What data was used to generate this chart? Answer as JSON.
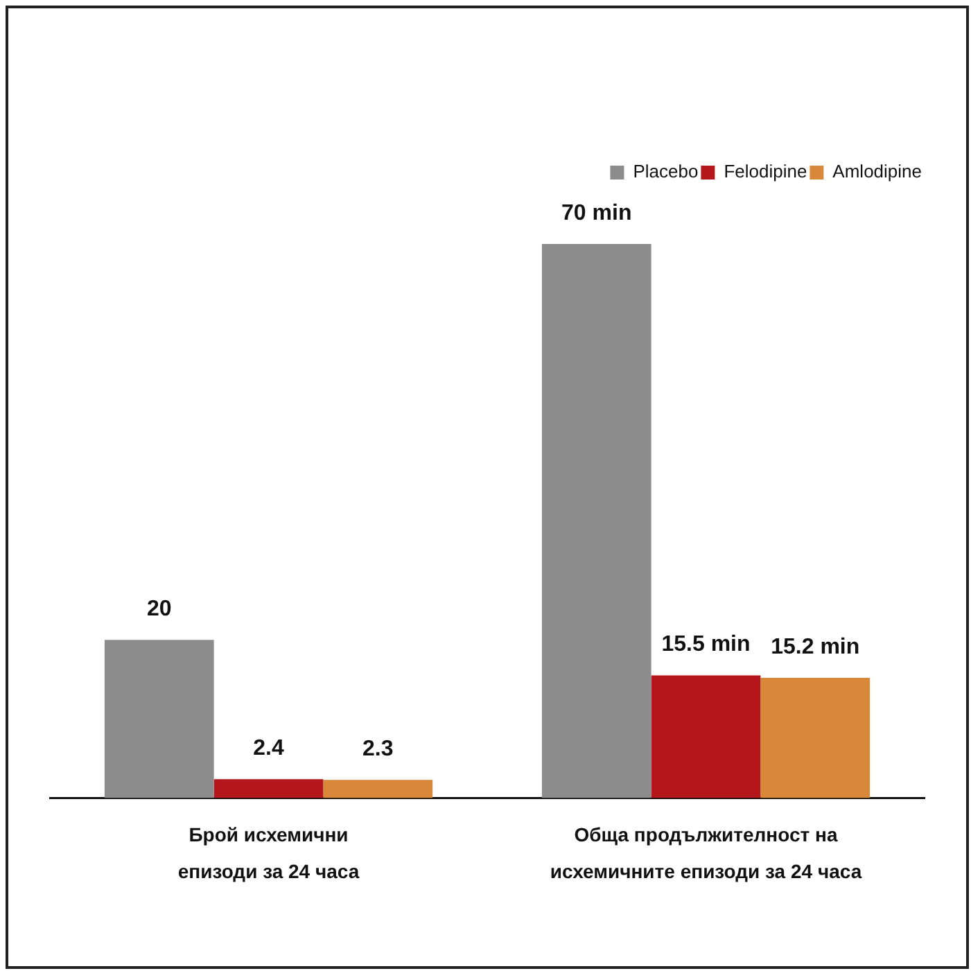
{
  "chart_data": {
    "type": "bar",
    "categories": [
      "Брой исхемични\nепизоди за 24 часа",
      "Обща продължителност на\nисхемичните епизоди за 24 часа"
    ],
    "series": [
      {
        "name": "Placebo",
        "color": "#8c8c8c",
        "values": [
          20,
          70
        ],
        "value_labels": [
          "20",
          "70 min"
        ]
      },
      {
        "name": "Felodipine",
        "color": "#b3161b",
        "values": [
          2.4,
          15.5
        ],
        "value_labels": [
          "2.4",
          "15.5 min"
        ]
      },
      {
        "name": "Amlodipine",
        "color": "#d9883a",
        "values": [
          2.3,
          15.2
        ],
        "value_labels": [
          "2.3",
          "15.2 min"
        ]
      }
    ],
    "data_labels": true,
    "grid": false,
    "legend": "top right",
    "tick_labels": "x"
  }
}
